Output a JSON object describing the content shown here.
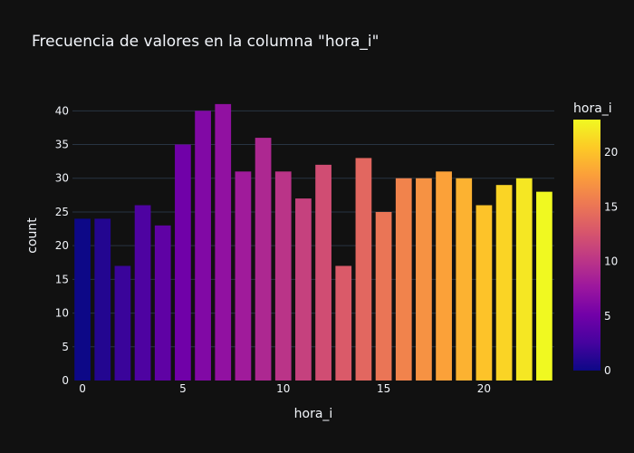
{
  "chart_data": {
    "type": "bar",
    "title": "Frecuencia de valores en la columna \"hora_i\"",
    "xlabel": "hora_i",
    "ylabel": "count",
    "x": [
      0,
      1,
      2,
      3,
      4,
      5,
      6,
      7,
      8,
      9,
      10,
      11,
      12,
      13,
      14,
      15,
      16,
      17,
      18,
      19,
      20,
      21,
      22,
      23
    ],
    "values": [
      24,
      24,
      17,
      26,
      23,
      35,
      40,
      41,
      31,
      36,
      31,
      27,
      32,
      17,
      33,
      25,
      30,
      30,
      31,
      30,
      26,
      29,
      30,
      28
    ],
    "xlim": [
      -0.5,
      23.5
    ],
    "ylim": [
      0,
      43
    ],
    "xticks": [
      0,
      5,
      10,
      15,
      20
    ],
    "yticks": [
      0,
      5,
      10,
      15,
      20,
      25,
      30,
      35,
      40
    ],
    "grid": true,
    "colorbar": {
      "title": "hora_i",
      "range": [
        0,
        23
      ],
      "ticks": [
        0,
        5,
        10,
        15,
        20
      ],
      "colorscale": [
        "#0d0887",
        "#46039f",
        "#7201a8",
        "#9c179e",
        "#bd3786",
        "#d8576b",
        "#ed7953",
        "#fb9f3a",
        "#fdca26",
        "#f0f921"
      ]
    },
    "colors": {
      "background": "#111111",
      "grid": "#283442",
      "text": "#f2f5fa"
    }
  }
}
